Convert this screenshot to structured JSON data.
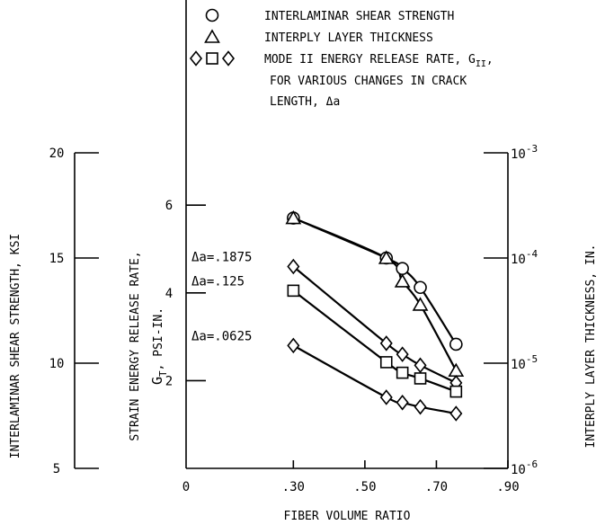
{
  "chart_data": {
    "type": "line",
    "legend": {
      "items": [
        {
          "symbol": "circle",
          "text": "INTERLAMINAR SHEAR STRENGTH"
        },
        {
          "symbol": "triangle",
          "text": "INTERPLY LAYER THICKNESS"
        },
        {
          "symbol": "diamond-square-diamond",
          "lines": [
            "MODE II ENERGY RELEASE RATE, G",
            "FOR VARIOUS CHANGES IN CRACK",
            "LENGTH, Δa"
          ],
          "subscript": "II",
          "trail": ","
        }
      ]
    },
    "x_axis": {
      "label": "FIBER VOLUME RATIO",
      "range": [
        0,
        0.9
      ],
      "ticks": [
        {
          "value": 0,
          "label": "0"
        },
        {
          "value": 0.3,
          "label": ".30"
        },
        {
          "value": 0.5,
          "label": ".50"
        },
        {
          "value": 0.7,
          "label": ".70"
        },
        {
          "value": 0.9,
          "label": ".90"
        }
      ]
    },
    "y_axes": {
      "inner": {
        "label_main": "STRAIN ENERGY RELEASE RATE,",
        "label_sym": "G",
        "label_sub": "T",
        "label_unit": ", PSI-IN.",
        "range": [
          0,
          7.1
        ],
        "ticks": [
          {
            "value": 2,
            "label": "2"
          },
          {
            "value": 4,
            "label": "4"
          },
          {
            "value": 6,
            "label": "6"
          }
        ]
      },
      "left": {
        "label": "INTERLAMINAR SHEAR STRENGTH, KSI",
        "range": [
          5,
          20
        ],
        "ticks": [
          {
            "value": 5,
            "label": "5"
          },
          {
            "value": 10,
            "label": "10"
          },
          {
            "value": 15,
            "label": "15"
          },
          {
            "value": 20,
            "label": "20"
          }
        ]
      },
      "right": {
        "label": "INTERPLY LAYER THICKNESS, IN.",
        "scale": "log",
        "range": [
          1e-06,
          0.001
        ],
        "ticks": [
          {
            "value": 1e-06,
            "base": "10",
            "exp": "-6"
          },
          {
            "value": 1e-05,
            "base": "10",
            "exp": "-5"
          },
          {
            "value": 0.0001,
            "base": "10",
            "exp": "-4"
          },
          {
            "value": 0.001,
            "base": "10",
            "exp": "-3"
          }
        ]
      }
    },
    "series": [
      {
        "key": "shear",
        "marker": "circle",
        "axis": "left",
        "x": [
          0.3,
          0.56,
          0.605,
          0.655,
          0.755
        ],
        "y": [
          16.9,
          15.0,
          14.5,
          13.6,
          10.9
        ]
      },
      {
        "key": "thickness",
        "marker": "triangle",
        "axis": "right",
        "x": [
          0.3,
          0.56,
          0.605,
          0.655,
          0.755
        ],
        "y": [
          0.00024,
          0.0001,
          6e-05,
          3.6e-05,
          8.5e-06
        ]
      },
      {
        "key": "da1875",
        "marker": "diamond",
        "axis": "inner",
        "label": "Δa=.1875",
        "x": [
          0.3,
          0.56,
          0.605,
          0.655,
          0.755
        ],
        "y": [
          4.6,
          2.85,
          2.6,
          2.35,
          1.95
        ]
      },
      {
        "key": "da125",
        "marker": "square",
        "axis": "inner",
        "label": "Δa=.125",
        "x": [
          0.3,
          0.56,
          0.605,
          0.655,
          0.755
        ],
        "y": [
          4.05,
          2.42,
          2.18,
          2.05,
          1.75
        ]
      },
      {
        "key": "da0625",
        "marker": "diamond",
        "axis": "inner",
        "label": "Δa=.0625",
        "x": [
          0.3,
          0.56,
          0.605,
          0.655,
          0.755
        ],
        "y": [
          2.8,
          1.62,
          1.5,
          1.4,
          1.25
        ]
      }
    ]
  }
}
